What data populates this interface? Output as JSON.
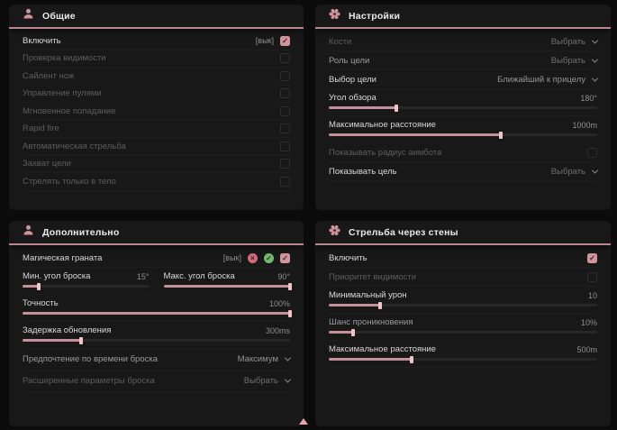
{
  "colors": {
    "accent": "#d2949c",
    "panel_bg": "#181818",
    "page_bg": "#0b0b0b",
    "header_underline": "#b9858c",
    "slider_fill": "#c59097",
    "slider_thumb": "#eec5c9",
    "icon_green": "#74b96b",
    "icon_red": "#d26b77"
  },
  "icons": {
    "x_glyph": "×",
    "check_glyph": "✓"
  },
  "panels": {
    "general": {
      "title": "Общие",
      "icon": "person-icon",
      "rows": [
        {
          "label": "Включить",
          "badge": "[вык]",
          "checked": true
        },
        {
          "label": "Проверка видимости",
          "checked": false
        },
        {
          "label": "Сайлент нож",
          "checked": false
        },
        {
          "label": "Управление пулями",
          "checked": false
        },
        {
          "label": "Мгновенное попадание",
          "checked": false
        },
        {
          "label": "Rapid fire",
          "checked": false
        },
        {
          "label": "Автоматическая стрельба",
          "checked": false
        },
        {
          "label": "Захват цели",
          "checked": false
        },
        {
          "label": "Стрелять только в тело",
          "checked": false
        }
      ]
    },
    "settings": {
      "title": "Настройки",
      "icon": "gear-icon",
      "rows": [
        {
          "type": "dropdown",
          "label": "Кости",
          "value": "Выбрать"
        },
        {
          "type": "dropdown",
          "label": "Роль цели",
          "value": "Выбрать"
        },
        {
          "type": "dropdown",
          "label": "Выбор цели",
          "value": "Ближайший к прицелу"
        },
        {
          "type": "slider",
          "label": "Угол обзора",
          "value": "180°",
          "percent": 25
        },
        {
          "type": "slider",
          "label": "Максимальное расстояние",
          "value": "1000m",
          "percent": 64
        },
        {
          "type": "checkbox",
          "label": "Показывать радиус аимбота",
          "checked": false
        },
        {
          "type": "dropdown",
          "label": "Показывать цель",
          "value": "Выбрать"
        }
      ]
    },
    "additional": {
      "title": "Дополнительно",
      "icon": "person-icon",
      "grenade": {
        "label": "Магическая граната",
        "badge": "[вык]",
        "checked": true
      },
      "sliders": [
        {
          "label": "Мин. угол броска",
          "value": "15°",
          "percent": 13
        },
        {
          "label": "Макс. угол броска",
          "value": "90°",
          "percent": 100
        },
        {
          "label": "Точность",
          "value": "100%",
          "percent": 100
        },
        {
          "label": "Задержка обновления",
          "value": "300ms",
          "percent": 22
        }
      ],
      "dropdowns": [
        {
          "label": "Предпочтение по времени броска",
          "value": "Максимум"
        },
        {
          "label": "Расширенные параметры броска",
          "value": "Выбрать"
        }
      ]
    },
    "walls": {
      "title": "Стрельба через стены",
      "icon": "gear-icon",
      "toggles": [
        {
          "label": "Включить",
          "checked": true
        },
        {
          "label": "Приоритет видимости",
          "checked": false
        }
      ],
      "sliders": [
        {
          "label": "Минимальный урон",
          "value": "10",
          "percent": 19
        },
        {
          "label": "Шанс проникновения",
          "value": "10%",
          "percent": 9
        },
        {
          "label": "Максимальное расстояние",
          "value": "500m",
          "percent": 31
        }
      ]
    }
  },
  "cursor": {
    "shape": "triangle-up",
    "color": "#e3a7ad"
  }
}
